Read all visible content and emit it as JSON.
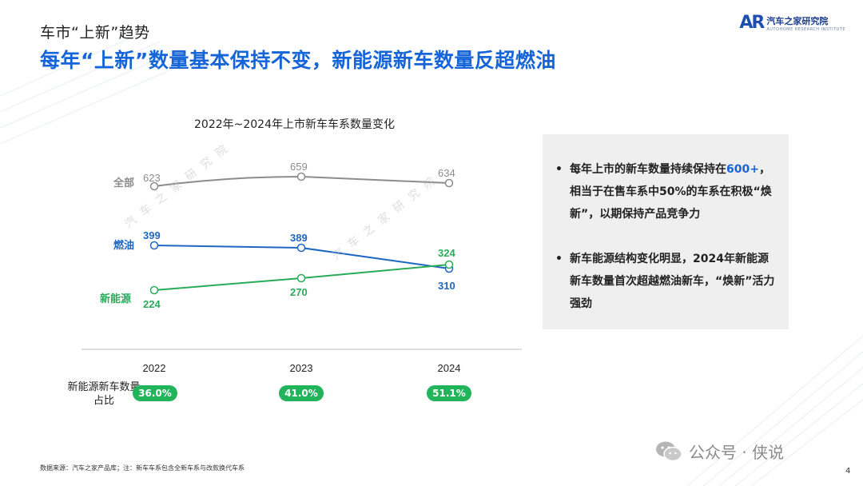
{
  "header": {
    "section_title": "车市“上新”趋势",
    "headline": "每年“上新”数量基本保持不变，新能源新车数量反超燃油",
    "logo_mark": "AR",
    "logo_text": "汽车之家研究院",
    "logo_sub": "AUTOHOME RESEARCH INSTITUTE"
  },
  "chart_data": {
    "type": "line",
    "title": "2022年~2024年上市新车车系数量变化",
    "categories": [
      "2022",
      "2023",
      "2024"
    ],
    "series": [
      {
        "name": "全部",
        "values": [
          623,
          659,
          634
        ],
        "color": "#8c8c8c"
      },
      {
        "name": "燃油",
        "values": [
          399,
          389,
          310
        ],
        "color": "#1f66c2"
      },
      {
        "name": "新能源",
        "values": [
          224,
          270,
          324
        ],
        "color": "#2aab5a"
      }
    ],
    "ratio_label": "新能源新车数量占比",
    "ratios": [
      "36.0%",
      "41.0%",
      "51.1%"
    ]
  },
  "info": {
    "bullet_symbol": "•",
    "b1_pre": "每年上市的新车数量持续保持在",
    "b1_highlight": "600+",
    "b1_post": "，相当于在售车系中50%的车系在积极“焕新”，以期保持产品竞争力",
    "b2": "新车能源结构变化明显，2024年新能源新车数量首次超越燃油新车，“焕新”活力强劲"
  },
  "footer": {
    "source": "数据来源：汽车之家产品库；注：新车车系包含全新车系与改款换代车系",
    "page": "4",
    "wechat_label": "公众号 · 侠说"
  },
  "watermark": "汽车之家研究院"
}
